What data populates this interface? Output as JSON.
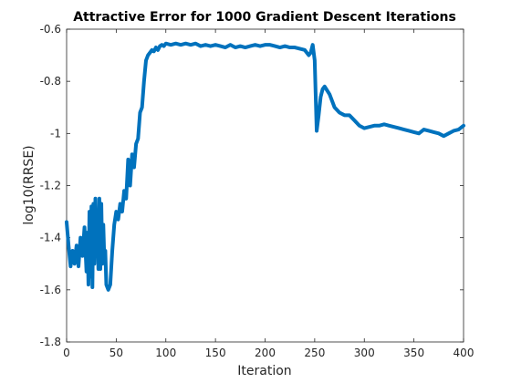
{
  "chart_data": {
    "type": "line",
    "title": "Attractive Error for 1000 Gradient Descent Iterations",
    "xlabel": "Iteration",
    "ylabel": "log10(RRSE)",
    "xlim": [
      0,
      400
    ],
    "ylim": [
      -1.8,
      -0.6
    ],
    "xticks": [
      0,
      50,
      100,
      150,
      200,
      250,
      300,
      350,
      400
    ],
    "yticks": [
      -1.8,
      -1.6,
      -1.4,
      -1.2,
      -1.0,
      -0.8,
      -0.6
    ],
    "xtick_labels": [
      "0",
      "50",
      "100",
      "150",
      "200",
      "250",
      "300",
      "350",
      "400"
    ],
    "ytick_labels": [
      "-1.8",
      "-1.6",
      "-1.4",
      "-1.2",
      "-1",
      "-0.8",
      "-0.6"
    ],
    "grid": false,
    "line_color": "#0072BD",
    "series": [
      {
        "x": [
          0,
          2,
          4,
          6,
          8,
          10,
          12,
          14,
          16,
          18,
          20,
          21,
          22,
          23,
          24,
          25,
          26,
          27,
          28,
          29,
          30,
          31,
          32,
          33,
          34,
          35,
          36,
          37,
          38,
          39,
          40,
          42,
          44,
          46,
          48,
          50,
          52,
          54,
          56,
          58,
          60,
          62,
          64,
          66,
          68,
          70,
          72,
          74,
          76,
          78,
          80,
          82,
          84,
          86,
          88,
          90,
          92,
          94,
          96,
          98,
          100,
          105,
          110,
          115,
          120,
          125,
          130,
          135,
          140,
          145,
          150,
          155,
          160,
          165,
          170,
          175,
          180,
          185,
          190,
          195,
          200,
          205,
          210,
          215,
          220,
          225,
          230,
          235,
          240,
          244,
          246,
          248,
          250,
          252,
          254,
          256,
          258,
          260,
          265,
          270,
          275,
          280,
          285,
          290,
          295,
          300,
          305,
          310,
          315,
          320,
          325,
          330,
          335,
          340,
          345,
          350,
          355,
          360,
          365,
          370,
          375,
          380,
          385,
          390,
          395,
          400
        ],
        "y": [
          -1.34,
          -1.43,
          -1.51,
          -1.45,
          -1.5,
          -1.43,
          -1.51,
          -1.4,
          -1.47,
          -1.36,
          -1.53,
          -1.38,
          -1.58,
          -1.3,
          -1.55,
          -1.28,
          -1.59,
          -1.27,
          -1.5,
          -1.25,
          -1.47,
          -1.33,
          -1.52,
          -1.25,
          -1.52,
          -1.27,
          -1.5,
          -1.35,
          -1.48,
          -1.45,
          -1.58,
          -1.6,
          -1.58,
          -1.45,
          -1.35,
          -1.3,
          -1.33,
          -1.27,
          -1.3,
          -1.22,
          -1.25,
          -1.1,
          -1.2,
          -1.08,
          -1.13,
          -1.04,
          -1.02,
          -0.92,
          -0.9,
          -0.8,
          -0.72,
          -0.7,
          -0.69,
          -0.68,
          -0.685,
          -0.67,
          -0.68,
          -0.665,
          -0.66,
          -0.665,
          -0.655,
          -0.66,
          -0.655,
          -0.66,
          -0.655,
          -0.66,
          -0.655,
          -0.665,
          -0.66,
          -0.665,
          -0.66,
          -0.665,
          -0.67,
          -0.66,
          -0.67,
          -0.665,
          -0.67,
          -0.665,
          -0.66,
          -0.665,
          -0.66,
          -0.66,
          -0.665,
          -0.67,
          -0.665,
          -0.67,
          -0.67,
          -0.675,
          -0.68,
          -0.7,
          -0.69,
          -0.66,
          -0.72,
          -0.99,
          -0.93,
          -0.86,
          -0.83,
          -0.82,
          -0.85,
          -0.9,
          -0.92,
          -0.93,
          -0.93,
          -0.95,
          -0.97,
          -0.98,
          -0.975,
          -0.97,
          -0.97,
          -0.965,
          -0.97,
          -0.975,
          -0.98,
          -0.985,
          -0.99,
          -0.995,
          -1.0,
          -0.985,
          -0.99,
          -0.995,
          -1.0,
          -1.01,
          -1.0,
          -0.99,
          -0.985,
          -0.97
        ]
      }
    ]
  }
}
